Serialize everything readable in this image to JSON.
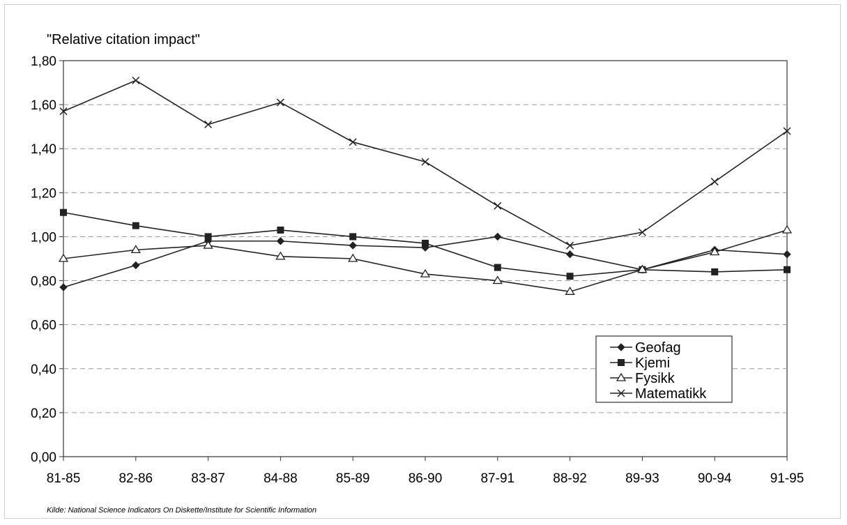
{
  "chart_data": {
    "type": "line",
    "title": "",
    "ylabel": "\"Relative citation impact\"",
    "xlabel": "",
    "categories": [
      "81-85",
      "82-86",
      "83-87",
      "84-88",
      "85-89",
      "86-90",
      "87-91",
      "88-92",
      "89-93",
      "90-94",
      "91-95"
    ],
    "ylim": [
      0,
      1.8
    ],
    "yticks": [
      "0,00",
      "0,20",
      "0,40",
      "0,60",
      "0,80",
      "1,00",
      "1,20",
      "1,40",
      "1,60",
      "1,80"
    ],
    "grid": "horizontal dashed",
    "legend_position": "lower-right",
    "series": [
      {
        "name": "Geofag",
        "marker": "diamond",
        "values": [
          0.77,
          0.87,
          0.98,
          0.98,
          0.96,
          0.95,
          1.0,
          0.92,
          0.85,
          0.94,
          0.92
        ]
      },
      {
        "name": "Kjemi",
        "marker": "square",
        "values": [
          1.11,
          1.05,
          1.0,
          1.03,
          1.0,
          0.97,
          0.86,
          0.82,
          0.85,
          0.84,
          0.85
        ]
      },
      {
        "name": "Fysikk",
        "marker": "triangle",
        "values": [
          0.9,
          0.94,
          0.96,
          0.91,
          0.9,
          0.83,
          0.8,
          0.75,
          0.85,
          0.93,
          1.03
        ]
      },
      {
        "name": "Matematikk",
        "marker": "x",
        "values": [
          1.57,
          1.71,
          1.51,
          1.61,
          1.43,
          1.34,
          1.14,
          0.96,
          1.02,
          1.25,
          1.48
        ]
      }
    ]
  },
  "source_note": "Kilde: National Science Indicators On Diskette/Institute for Scientific Information"
}
